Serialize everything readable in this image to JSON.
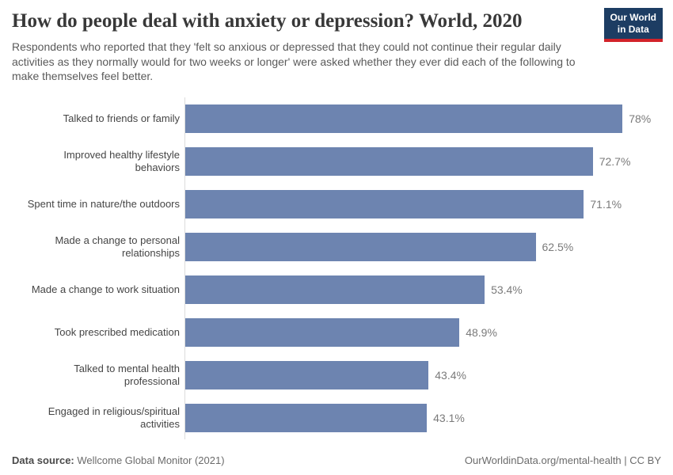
{
  "header": {
    "title": "How do people deal with anxiety or depression? World, 2020",
    "subtitle": "Respondents who reported that they 'felt so anxious or depressed that they could not continue their regular daily activities as they normally would for two weeks or longer' were asked whether they ever did each of the following to make themselves feel better.",
    "logo": {
      "line1": "Our World",
      "line2": "in Data"
    }
  },
  "chart_data": {
    "type": "bar",
    "orientation": "horizontal",
    "title": "How do people deal with anxiety or depression? World, 2020",
    "xlabel": "",
    "ylabel": "",
    "xlim": [
      0,
      78
    ],
    "grid": false,
    "legend": false,
    "categories": [
      "Talked to friends or family",
      "Improved healthy lifestyle behaviors",
      "Spent time in nature/the outdoors",
      "Made a change to personal relationships",
      "Made a change to work situation",
      "Took prescribed medication",
      "Talked to mental health professional",
      "Engaged in religious/spiritual activities"
    ],
    "display_labels": [
      "Talked to friends or family",
      "Improved healthy lifestyle\nbehaviors",
      "Spent time in nature/the outdoors",
      "Made a change to personal\nrelationships",
      "Made a change to work situation",
      "Took prescribed medication",
      "Talked to mental health\nprofessional",
      "Engaged in religious/spiritual\nactivities"
    ],
    "values": [
      78,
      72.7,
      71.1,
      62.5,
      53.4,
      48.9,
      43.4,
      43.1
    ],
    "value_labels": [
      "78%",
      "72.7%",
      "71.1%",
      "62.5%",
      "53.4%",
      "48.9%",
      "43.4%",
      "43.1%"
    ],
    "bar_color": "#6d84b0"
  },
  "footer": {
    "data_source_label": "Data source:",
    "data_source_value": " Wellcome Global Monitor (2021)",
    "attribution": "OurWorldinData.org/mental-health | CC BY"
  },
  "colors": {
    "bar": "#6d84b0",
    "axis_line": "#dcdcdc",
    "logo_navy": "#1d3d63",
    "logo_red": "#d2232a",
    "title_text": "#383838",
    "subtitle_text": "#5a5a5a",
    "category_text": "#454545",
    "value_text": "#7a7a7a"
  }
}
